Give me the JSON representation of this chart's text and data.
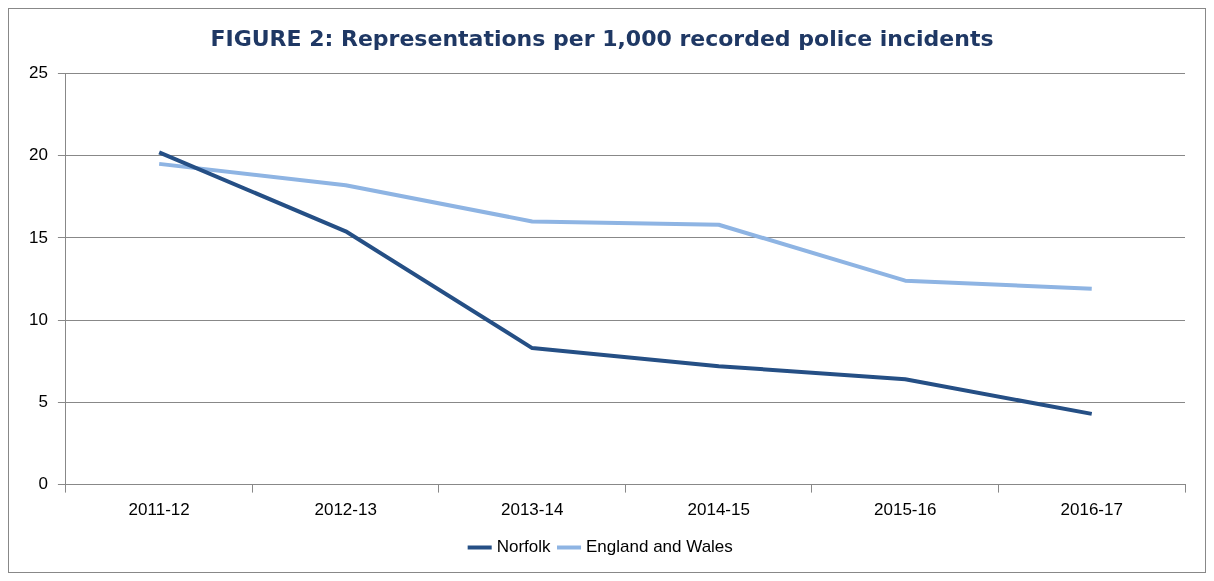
{
  "chart_data": {
    "type": "line",
    "title": "FIGURE 2: Representations per 1,000 recorded police incidents",
    "categories": [
      "2011-12",
      "2012-13",
      "2013-14",
      "2014-15",
      "2015-16",
      "2016-17"
    ],
    "series": [
      {
        "name": "Norfolk",
        "color": "#254f85",
        "values": [
          20.2,
          15.4,
          8.3,
          7.2,
          6.4,
          4.3
        ]
      },
      {
        "name": "England and Wales",
        "color": "#8eb4e3",
        "values": [
          19.5,
          18.2,
          16.0,
          15.8,
          12.4,
          11.9
        ]
      }
    ],
    "ylim": [
      0,
      25
    ],
    "yticks": [
      0,
      5,
      10,
      15,
      20,
      25
    ],
    "grid": "y",
    "legend": "bottom",
    "marker": "none",
    "line_style": "solid"
  }
}
